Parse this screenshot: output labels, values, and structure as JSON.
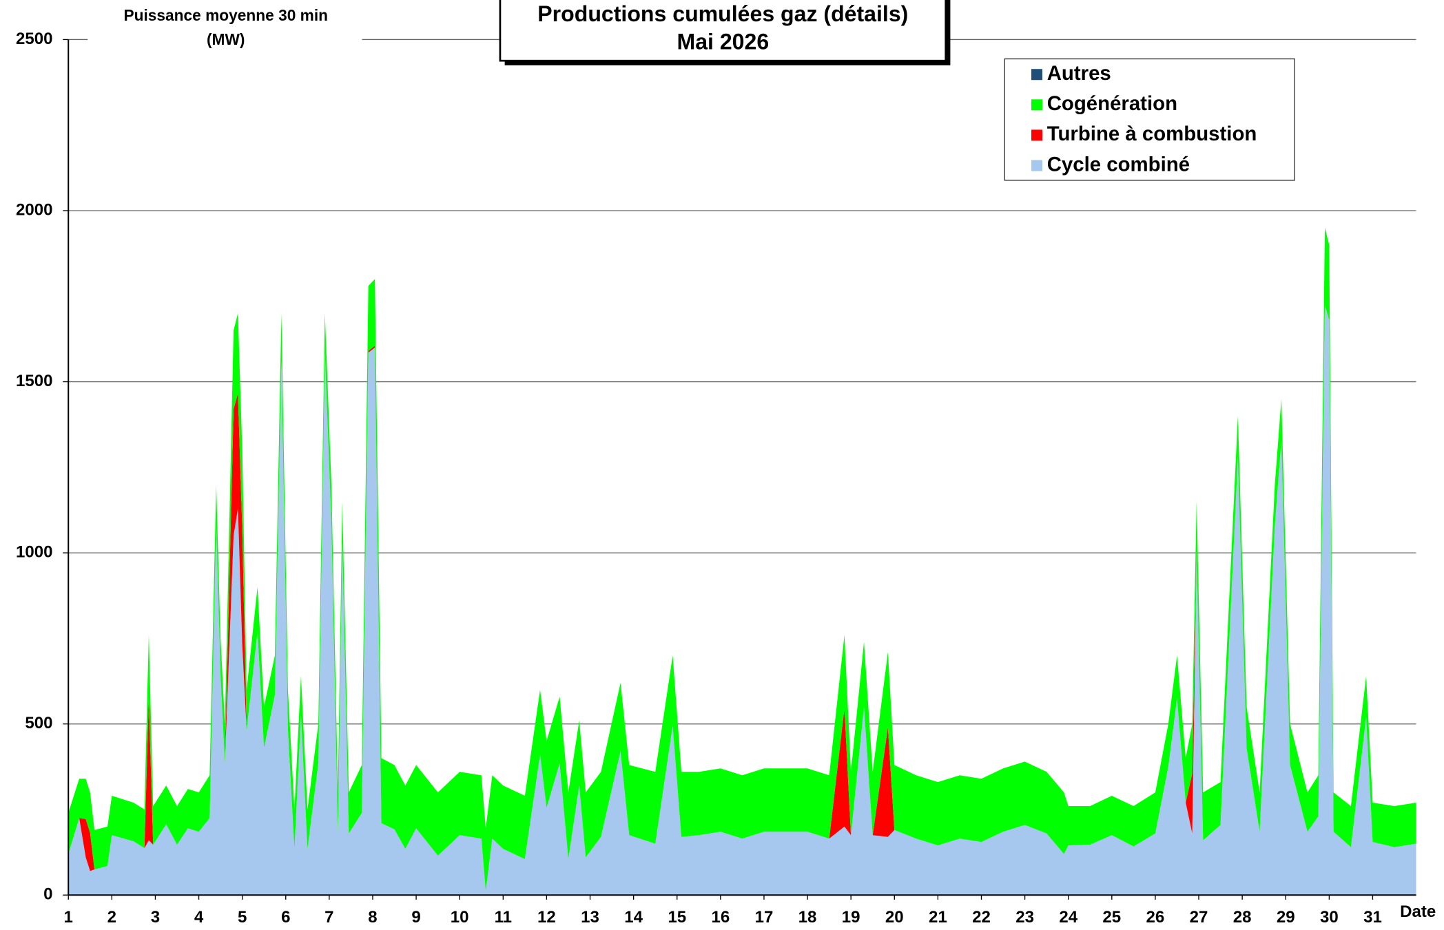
{
  "chart_data": {
    "type": "stacked_area",
    "title": "Productions cumulées gaz (détails)",
    "subtitle": "Mai 2026",
    "y_label": "Puissance moyenne 30 min",
    "y_unit": "(MW)",
    "x_label": "Date",
    "xlim": [
      1,
      32
    ],
    "xticks": [
      1,
      2,
      3,
      4,
      5,
      6,
      7,
      8,
      9,
      10,
      11,
      12,
      13,
      14,
      15,
      16,
      17,
      18,
      19,
      20,
      21,
      22,
      23,
      24,
      25,
      26,
      27,
      28,
      29,
      30,
      31
    ],
    "ylim": [
      0,
      2500
    ],
    "yticks": [
      0,
      500,
      1000,
      1500,
      2000,
      2500
    ],
    "grid": true,
    "legend_position": "upper right",
    "x": [
      1,
      1.25,
      1.4,
      1.5,
      1.6,
      1.9,
      2.0,
      2.5,
      2.75,
      2.85,
      2.95,
      3.25,
      3.5,
      3.75,
      4.0,
      4.25,
      4.4,
      4.5,
      4.6,
      4.8,
      4.9,
      5.0,
      5.1,
      5.35,
      5.5,
      5.75,
      5.9,
      6.05,
      6.2,
      6.35,
      6.5,
      6.75,
      6.9,
      7.05,
      7.2,
      7.3,
      7.45,
      7.75,
      7.9,
      8.05,
      8.2,
      8.5,
      8.75,
      9.0,
      9.5,
      10.0,
      10.5,
      10.6,
      10.75,
      11.0,
      11.5,
      11.85,
      12.0,
      12.3,
      12.5,
      12.75,
      12.9,
      13.25,
      13.7,
      13.9,
      14.5,
      14.9,
      15.1,
      15.5,
      16,
      16.5,
      17,
      17.5,
      18,
      18.5,
      18.85,
      19,
      19.3,
      19.5,
      19.85,
      20,
      20.5,
      21,
      21.5,
      22,
      22.5,
      23,
      23.5,
      23.9,
      24,
      24.5,
      25,
      25.5,
      26,
      26.3,
      26.5,
      26.7,
      26.85,
      26.95,
      27.1,
      27.5,
      27.9,
      28.1,
      28.4,
      28.75,
      28.9,
      29.1,
      29.5,
      29.75,
      29.9,
      30,
      30.1,
      30.5,
      30.85,
      31,
      31.5,
      32
    ],
    "series": [
      {
        "name": "Autres",
        "color": "#1f4e79",
        "values": [
          0,
          0,
          0,
          0,
          0,
          0,
          0,
          0,
          0,
          0,
          0,
          0,
          0,
          0,
          0,
          0,
          0,
          0,
          0,
          0,
          0,
          0,
          0,
          0,
          0,
          0,
          0,
          0,
          0,
          0,
          0,
          0,
          0,
          0,
          0,
          0,
          0,
          0,
          0,
          0,
          0,
          0,
          0,
          0,
          0,
          0,
          0,
          0,
          0,
          0,
          0,
          0,
          0,
          0,
          0,
          0,
          0,
          0,
          0,
          0,
          0,
          0,
          0,
          0,
          0,
          0,
          0,
          0,
          0,
          0,
          0,
          0,
          0,
          0,
          0,
          0,
          0,
          0,
          0,
          0,
          0,
          0,
          0,
          0,
          0,
          0,
          0,
          0,
          0,
          0,
          0,
          0,
          0,
          0,
          0,
          0,
          0,
          0,
          0,
          0,
          0,
          0,
          0,
          0,
          0,
          0,
          0,
          0,
          0,
          0,
          0,
          0
        ]
      },
      {
        "name": "Cogénération",
        "color": "#00ff00",
        "values": [
          120,
          115,
          118,
          118,
          115,
          115,
          115,
          113,
          113,
          185,
          113,
          113,
          113,
          115,
          115,
          125,
          115,
          105,
          115,
          230,
          235,
          230,
          120,
          130,
          120,
          115,
          140,
          115,
          115,
          115,
          115,
          115,
          115,
          115,
          120,
          120,
          120,
          140,
          190,
          195,
          190,
          188,
          185,
          185,
          185,
          185,
          185,
          183,
          185,
          185,
          185,
          190,
          195,
          195,
          195,
          190,
          190,
          190,
          200,
          205,
          210,
          205,
          190,
          185,
          185,
          185,
          185,
          185,
          185,
          185,
          215,
          185,
          190,
          185,
          220,
          190,
          185,
          185,
          185,
          185,
          185,
          185,
          180,
          180,
          115,
          113,
          115,
          118,
          120,
          125,
          125,
          130,
          145,
          145,
          140,
          125,
          120,
          120,
          115,
          120,
          120,
          120,
          115,
          120,
          225,
          220,
          115,
          120,
          120,
          115,
          120,
          120
        ]
      },
      {
        "name": "Turbine à combustion",
        "color": "#ff0000",
        "values": [
          0,
          0,
          112,
          112,
          0,
          0,
          0,
          0,
          0,
          415,
          0,
          0,
          0,
          0,
          0,
          0,
          0,
          0,
          0,
          370,
          335,
          340,
          0,
          0,
          0,
          0,
          0,
          0,
          0,
          0,
          0,
          0,
          0,
          0,
          0,
          0,
          0,
          0,
          5,
          5,
          0,
          0,
          0,
          0,
          0,
          0,
          0,
          0,
          0,
          0,
          0,
          0,
          0,
          0,
          0,
          0,
          0,
          0,
          0,
          0,
          0,
          0,
          0,
          0,
          0,
          0,
          0,
          0,
          0,
          0,
          345,
          0,
          0,
          0,
          320,
          0,
          0,
          0,
          0,
          0,
          0,
          0,
          0,
          0,
          0,
          0,
          0,
          0,
          0,
          0,
          0,
          0,
          175,
          0,
          0,
          0,
          0,
          0,
          0,
          0,
          0,
          0,
          0,
          0,
          0,
          0,
          0,
          0,
          0,
          0,
          0,
          0
        ]
      },
      {
        "name": "Cycle combiné",
        "color": "#a6c8ee",
        "values": [
          120,
          225,
          110,
          70,
          75,
          85,
          175,
          157,
          137,
          160,
          147,
          207,
          147,
          195,
          185,
          225,
          1085,
          645,
          385,
          1050,
          1130,
          730,
          480,
          770,
          430,
          585,
          1560,
          485,
          135,
          525,
          135,
          385,
          1585,
          1085,
          180,
          1030,
          180,
          240,
          1585,
          1600,
          210,
          192,
          135,
          195,
          115,
          175,
          165,
          12,
          165,
          135,
          105,
          410,
          255,
          385,
          105,
          320,
          110,
          170,
          420,
          175,
          150,
          495,
          170,
          175,
          185,
          165,
          185,
          185,
          185,
          165,
          200,
          175,
          550,
          175,
          170,
          190,
          165,
          145,
          165,
          155,
          185,
          205,
          180,
          120,
          145,
          147,
          175,
          142,
          180,
          375,
          575,
          270,
          180,
          1005,
          160,
          205,
          1280,
          430,
          185,
          1080,
          1330,
          380,
          185,
          230,
          1725,
          1680,
          185,
          140,
          520,
          155,
          140,
          150
        ]
      }
    ]
  }
}
